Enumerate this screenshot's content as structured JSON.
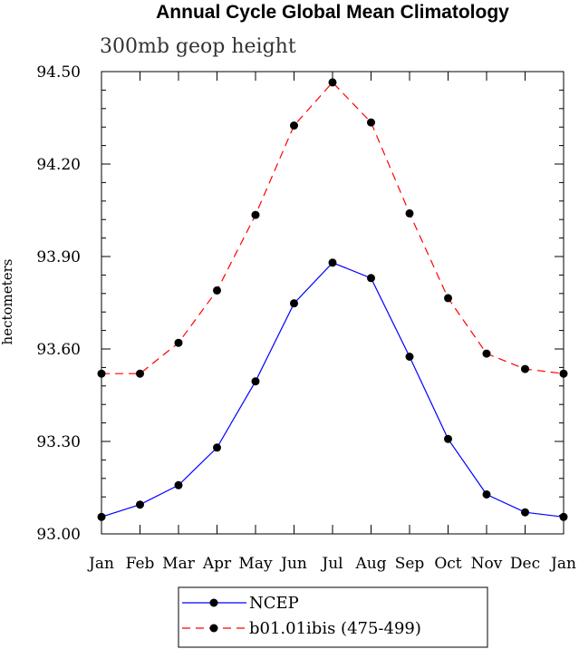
{
  "chart_data": {
    "type": "line",
    "title": "Annual Cycle Global Mean Climatology",
    "subtitle": "300mb geop height",
    "xlabel": "",
    "ylabel": "hectometers",
    "categories": [
      "Jan",
      "Feb",
      "Mar",
      "Apr",
      "May",
      "Jun",
      "Jul",
      "Aug",
      "Sep",
      "Oct",
      "Nov",
      "Dec",
      "Jan"
    ],
    "yticks": [
      93.0,
      93.3,
      93.6,
      93.9,
      94.2,
      94.5
    ],
    "ytick_labels": [
      "93.00",
      "93.30",
      "93.60",
      "93.90",
      "94.20",
      "94.50"
    ],
    "ylim": [
      93.0,
      94.5
    ],
    "grid": false,
    "legend_position": "bottom-center",
    "series": [
      {
        "name": "NCEP",
        "color": "#0000ff",
        "dash": "solid",
        "values": [
          93.055,
          93.095,
          93.158,
          93.28,
          93.495,
          93.748,
          93.88,
          93.83,
          93.575,
          93.308,
          93.128,
          93.07,
          93.055
        ]
      },
      {
        "name": "b01.01ibis (475-499)",
        "color": "#ff0000",
        "dash": "dashed",
        "values": [
          93.52,
          93.52,
          93.62,
          93.79,
          94.035,
          94.325,
          94.465,
          94.335,
          94.04,
          93.765,
          93.585,
          93.535,
          93.52
        ]
      }
    ]
  }
}
